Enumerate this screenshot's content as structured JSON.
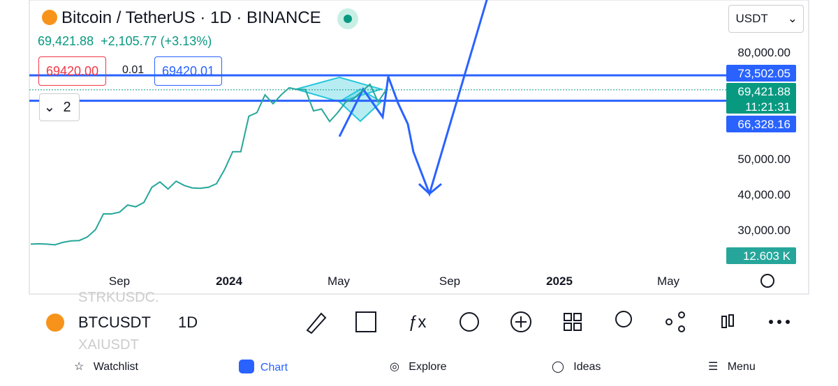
{
  "header": {
    "title": "Bitcoin / TetherUS · 1D · BINANCE",
    "price": "69,421.88",
    "change": "+2,105.77 (+3.13%)",
    "bid": "69420.00",
    "spread": "0.01",
    "ask": "69420.01",
    "indicators": "2",
    "currency": "USDT"
  },
  "chart_data": {
    "type": "line",
    "color": "#26a69a",
    "values": [
      26000,
      26100,
      26000,
      25800,
      26500,
      26900,
      27000,
      28000,
      30000,
      34500,
      34500,
      35000,
      37000,
      36500,
      37700,
      42000,
      43500,
      41500,
      43700,
      42500,
      41800,
      41700,
      42000,
      43000,
      47000,
      52000,
      52000,
      62000,
      63000,
      68000,
      65500,
      68000,
      70000,
      69500,
      69500,
      63500,
      64000,
      60500,
      63000,
      66000,
      67000,
      69000,
      71000,
      66000,
      69421.88
    ],
    "x_labels": [
      "Sep",
      "2024",
      "May",
      "Sep",
      "2025",
      "May"
    ],
    "ylim": [
      19200,
      94700
    ],
    "yticks": [
      {
        "value": 80000,
        "label": "80,000.00"
      },
      {
        "value": 50000,
        "label": "50,000.00"
      },
      {
        "value": 40000,
        "label": "40,000.00"
      },
      {
        "value": 30000,
        "label": "30,000.00"
      }
    ],
    "levels": [
      {
        "value": 73502.05,
        "label": "73,502.05"
      },
      {
        "value": 66328.16,
        "label": "66,328.16"
      }
    ],
    "last": {
      "value": 69421.88,
      "label": "69,421.88"
    },
    "countdown": "11:21:31",
    "volume_label": "12.603 K"
  },
  "toolbar": {
    "symbol": "BTCUSDT",
    "interval": "1D",
    "behind": [
      "STRKUSDC.",
      "XAIUSDT"
    ]
  },
  "nav": [
    "Watchlist",
    "Chart",
    "Explore",
    "Ideas",
    "Menu"
  ]
}
